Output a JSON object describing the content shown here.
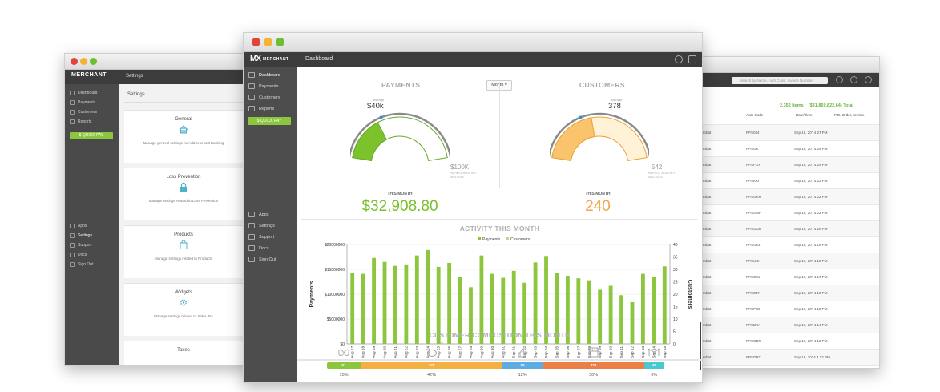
{
  "left_window": {
    "logo": "MERCHANT",
    "title": "Settings",
    "nav": [
      "Dashboard",
      "Payments",
      "Customers",
      "Reports"
    ],
    "quick_pay": "$ QUICK PAY",
    "nav_bottom": [
      "Apps",
      "Settings",
      "Support",
      "Docs",
      "Sign Out"
    ],
    "main_title": "Settings",
    "cards": [
      {
        "title": "General",
        "desc": "Manage general settings for Add ress and Banking"
      },
      {
        "title": "Loss Prevention",
        "desc": "Manage settings related to Loss Prevention"
      },
      {
        "title": "Products",
        "desc": "Manage settings related to Products"
      },
      {
        "title": "Widgets",
        "desc": "Manage settings related to Sales Tax"
      }
    ],
    "last_card": "Taxes"
  },
  "right_window": {
    "search_placeholder": "Search by Name, Auth Code, Invoice Number",
    "summary_items": "2,352 Items",
    "summary_total": "($31,869,822.64) Total",
    "headers": {
      "auth": "Auth Code",
      "date": "Date/Time",
      "po": "P.O. Order, Invoice"
    },
    "rows": [
      {
        "name": "Sanbat",
        "auth": "PPS034",
        "date": "Sep 16, 20'' 4 27 PM"
      },
      {
        "name": "Sanbat",
        "auth": "PPSGK",
        "date": "Sep 16, 20'' 4 25 PM"
      },
      {
        "name": "Sanbat",
        "auth": "PPSFOX",
        "date": "Sep 16, 20'' 4 24 PM"
      },
      {
        "name": "Sanbat",
        "auth": "PPSKXI",
        "date": "Sep 16, 20'' 4 23 PM"
      },
      {
        "name": "Sanbat",
        "auth": "PPSGKM",
        "date": "Sep 16, 20'' 4 22 PM"
      },
      {
        "name": "Sanbat",
        "auth": "PPSGNP",
        "date": "Sep 16, 20'' 4 22 PM"
      },
      {
        "name": "Sanbat",
        "auth": "PPSGGR",
        "date": "Sep 16, 20'' 4 20 PM"
      },
      {
        "name": "Sanbat",
        "auth": "PPSGKE",
        "date": "Sep 16, 20'' 4 19 PM"
      },
      {
        "name": "Sanbat",
        "auth": "PPSUXI",
        "date": "Sep 16, 20'' 4 18 PM"
      },
      {
        "name": "Sanbat",
        "auth": "PPSGKL",
        "date": "Sep 16, 20'' 4 17 PM"
      },
      {
        "name": "Sanbat",
        "auth": "PPSCTK",
        "date": "Sep 16, 20'' 4 16 PM"
      },
      {
        "name": "Sanbat",
        "auth": "PPSPDE",
        "date": "Sep 16, 20'' 4 15 PM"
      },
      {
        "name": "Sanbat",
        "auth": "PPSBRA",
        "date": "Sep 16, 20'' 4 14 PM"
      },
      {
        "name": "Sanbat",
        "auth": "PPSGBN",
        "date": "Sep 16, 20'' 4 13 PM"
      },
      {
        "name": "Sanbat",
        "auth": "PPSGRY",
        "date": "Sep 16, 2014 4 12 PM"
      },
      {
        "name": "Sanbat",
        "auth": "PPSGBC",
        "date": "Sep 16, 2014 4 11 PM"
      }
    ]
  },
  "main": {
    "logo_mark": "MX",
    "logo_word": "MERCHANT",
    "title": "Dashboard",
    "nav": [
      {
        "label": "Dashboard",
        "icon": "gauge-icon"
      },
      {
        "label": "Payments",
        "icon": "payments-icon"
      },
      {
        "label": "Customers",
        "icon": "customers-icon"
      },
      {
        "label": "Reports",
        "icon": "reports-icon"
      }
    ],
    "quick_pay": "$ QUICK PAY",
    "nav_bottom": [
      {
        "label": "Apps",
        "icon": "apps-icon"
      },
      {
        "label": "Settings",
        "icon": "gear-icon"
      },
      {
        "label": "Support",
        "icon": "support-icon"
      },
      {
        "label": "Docs",
        "icon": "docs-icon"
      },
      {
        "label": "Sign Out",
        "icon": "power-icon"
      }
    ],
    "month_button": "Month ▾",
    "payments": {
      "title": "PAYMENTS",
      "avg_label": "average",
      "avg_value": "$40k",
      "max_value": "$100K",
      "max_sub_1": "HIGHEST MONTHLY",
      "max_sub_2": "08/21/2014",
      "this_month_label": "THIS MONTH",
      "this_month_value": "$32,908.80",
      "fill_fraction": 0.33
    },
    "customers": {
      "title": "CUSTOMERS",
      "avg_label": "average",
      "avg_value": "378",
      "max_value": "542",
      "max_sub_1": "HIGHEST MONTHLY",
      "max_sub_2": "08/27/2014",
      "this_month_label": "THIS MONTH",
      "this_month_value": "240",
      "fill_fraction": 0.44
    },
    "activity_title": "ACTIVITY THIS MONTH",
    "composition_title": "CUSTOMER COMPOSITION THIS MONTH",
    "composition": [
      {
        "value": "51",
        "pct": "10%",
        "color": "#8cc63f",
        "weight": 10,
        "icon": "butterfly-icon"
      },
      {
        "value": "475",
        "pct": "42%",
        "color": "#f5b041",
        "weight": 42,
        "icon": "piggy-bank-icon"
      },
      {
        "value": "55",
        "pct": "12%",
        "color": "#5dade2",
        "weight": 12,
        "icon": "thumbs-up-icon"
      },
      {
        "value": "326",
        "pct": "30%",
        "color": "#eb7f45",
        "weight": 30,
        "icon": "storefront-icon"
      },
      {
        "value": "48",
        "pct": "6%",
        "color": "#48c9d0",
        "weight": 6,
        "icon": "network-icon"
      }
    ]
  },
  "chart_data": {
    "type": "bar",
    "title": "ACTIVITY THIS MONTH",
    "ylabel": "Payments",
    "y2label": "Customers",
    "ylim": [
      0,
      20000000
    ],
    "y2lim": [
      0,
      40
    ],
    "yticks": [
      "$0",
      "$5000000",
      "$10000000",
      "$15000000",
      "$20000000"
    ],
    "y2ticks": [
      "0",
      "5",
      "10",
      "15",
      "20",
      "25",
      "30",
      "35",
      "40"
    ],
    "legend": [
      "Payments",
      "Customers"
    ],
    "legend_position": "top",
    "categories": [
      "Aug 17",
      "Aug 18",
      "Aug 19",
      "Aug 20",
      "Aug 21",
      "Aug 22",
      "Aug 23",
      "Aug 24",
      "Aug 25",
      "Aug 26",
      "Aug 27",
      "Aug 28",
      "Aug 29",
      "Aug 30",
      "Aug 31",
      "Sep 01",
      "Sep 02",
      "Sep 03",
      "Sep 04",
      "Sep 05",
      "Sep 06",
      "Sep 07",
      "Sep 08",
      "Sep 09",
      "Sep 10",
      "Sep 11",
      "Sep 12",
      "Sep 13",
      "Sep 14",
      "Sep 15"
    ],
    "series": [
      {
        "name": "Payments",
        "color": "#8cc63f",
        "values": [
          14300000,
          14100000,
          17300000,
          16500000,
          15700000,
          16000000,
          17800000,
          18900000,
          15500000,
          16300000,
          13400000,
          11400000,
          17800000,
          14100000,
          13300000,
          14700000,
          12300000,
          16400000,
          17700000,
          14300000,
          13700000,
          13200000,
          12800000,
          10900000,
          11700000,
          9800000,
          8400000,
          14100000,
          13400000,
          15600000
        ]
      },
      {
        "name": "Customers",
        "color": "#8cc63f",
        "values": [
          0,
          0,
          0,
          0,
          0,
          0,
          0,
          0,
          0.5,
          0,
          0,
          0,
          0,
          0,
          0,
          0,
          0,
          0,
          0,
          0,
          0,
          0,
          0,
          0,
          0,
          0,
          0,
          0,
          0,
          0
        ]
      }
    ]
  }
}
